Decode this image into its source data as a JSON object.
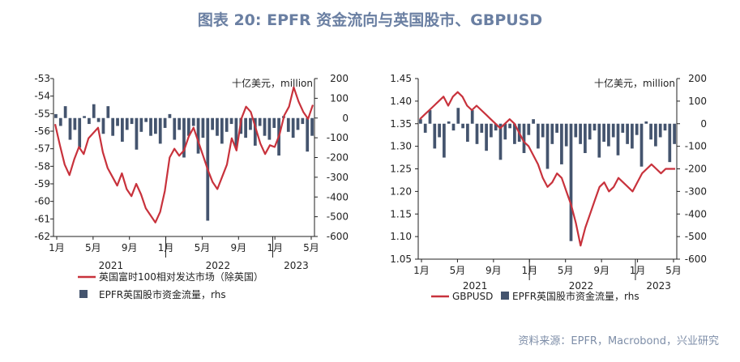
{
  "page_title": "图表 20: EPFR 资金流向与英国股市、GBPUSD",
  "source": "资料来源：EPFR，Macrobond，兴业研究",
  "colors": {
    "line": "#c8323c",
    "bar": "#44546e",
    "title": "#6a7fa2"
  },
  "chart_data": [
    {
      "type": "bar+line",
      "unit_label": "十亿美元，million",
      "y_left": {
        "ticks": [
          "-53",
          "-54",
          "-55",
          "-56",
          "-57",
          "-58",
          "-59",
          "-60",
          "-61",
          "-62"
        ],
        "range": [
          -62,
          -53
        ]
      },
      "y_right": {
        "ticks": [
          "200",
          "100",
          "0",
          "-100",
          "-200",
          "-300",
          "-400",
          "-500",
          "-600"
        ],
        "range": [
          -600,
          200
        ]
      },
      "x_ticks": [
        "1月",
        "5月",
        "9月",
        "1月",
        "5月",
        "9月",
        "1月",
        "5月"
      ],
      "years": [
        "2021",
        "2022",
        "2023"
      ],
      "legend": [
        {
          "kind": "line",
          "label": "英国富时100相对发达市场（除英国）"
        },
        {
          "kind": "bar",
          "label": "EPFR英国股市资金流量，rhs"
        }
      ],
      "series": [
        {
          "name": "英国富时100相对发达市场（除英国）",
          "axis": "left",
          "values": [
            -55.6,
            -56.8,
            -57.9,
            -58.5,
            -57.6,
            -56.9,
            -57.3,
            -56.4,
            -56.1,
            -55.8,
            -57.2,
            -58.1,
            -58.6,
            -59.1,
            -58.4,
            -59.3,
            -59.7,
            -59.0,
            -59.6,
            -60.4,
            -60.8,
            -61.2,
            -60.6,
            -59.4,
            -57.5,
            -57.0,
            -57.4,
            -57.1,
            -56.3,
            -55.8,
            -56.6,
            -57.4,
            -58.2,
            -58.9,
            -59.3,
            -58.6,
            -57.9,
            -56.4,
            -57.1,
            -55.3,
            -54.6,
            -54.9,
            -55.8,
            -56.7,
            -57.3,
            -56.8,
            -56.9,
            -56.2,
            -55.1,
            -54.6,
            -53.5,
            -54.3,
            -54.9,
            -55.3,
            -54.5
          ]
        },
        {
          "name": "EPFR英国股市资金流量",
          "axis": "right",
          "values": [
            20,
            -40,
            60,
            -110,
            -60,
            -150,
            10,
            -30,
            70,
            -20,
            -80,
            60,
            -90,
            -40,
            -120,
            -60,
            -30,
            -160,
            -70,
            -20,
            -90,
            -80,
            -130,
            -50,
            20,
            -110,
            -60,
            -200,
            -90,
            -40,
            -180,
            -100,
            -520,
            -60,
            -90,
            -130,
            -70,
            -30,
            -150,
            -80,
            -100,
            -60,
            -140,
            -40,
            -90,
            -110,
            -50,
            -190,
            10,
            -70,
            -100,
            -60,
            -30,
            -170,
            -90
          ]
        }
      ]
    },
    {
      "type": "bar+line",
      "unit_label": "十亿美元，million",
      "y_left": {
        "ticks": [
          "1.45",
          "1.40",
          "1.35",
          "1.30",
          "1.25",
          "1.20",
          "1.15",
          "1.10",
          "1.05"
        ],
        "range": [
          1.05,
          1.45
        ]
      },
      "y_right": {
        "ticks": [
          "200",
          "100",
          "0",
          "-100",
          "-200",
          "-300",
          "-400",
          "-500",
          "-600"
        ],
        "range": [
          -600,
          200
        ]
      },
      "x_ticks": [
        "1月",
        "5月",
        "9月",
        "1月",
        "5月",
        "9月",
        "1月",
        "5月"
      ],
      "years": [
        "2021",
        "2022",
        "2023"
      ],
      "legend": [
        {
          "kind": "line",
          "label": "GBPUSD"
        },
        {
          "kind": "bar",
          "label": "EPFR英国股市资金流量，rhs"
        }
      ],
      "series": [
        {
          "name": "GBPUSD",
          "axis": "left",
          "values": [
            1.36,
            1.37,
            1.38,
            1.39,
            1.4,
            1.41,
            1.39,
            1.41,
            1.42,
            1.41,
            1.39,
            1.38,
            1.39,
            1.38,
            1.37,
            1.36,
            1.35,
            1.34,
            1.35,
            1.36,
            1.35,
            1.33,
            1.31,
            1.3,
            1.28,
            1.26,
            1.23,
            1.21,
            1.22,
            1.24,
            1.23,
            1.2,
            1.17,
            1.13,
            1.08,
            1.12,
            1.15,
            1.18,
            1.21,
            1.22,
            1.2,
            1.21,
            1.23,
            1.22,
            1.21,
            1.2,
            1.22,
            1.24,
            1.25,
            1.26,
            1.25,
            1.24,
            1.25,
            1.25,
            1.25
          ]
        },
        {
          "name": "EPFR英国股市资金流量",
          "axis": "right",
          "values": [
            20,
            -40,
            60,
            -110,
            -60,
            -150,
            10,
            -30,
            70,
            -20,
            -80,
            60,
            -90,
            -40,
            -120,
            -60,
            -30,
            -160,
            -70,
            -20,
            -90,
            -80,
            -130,
            -50,
            20,
            -110,
            -60,
            -200,
            -90,
            -40,
            -180,
            -100,
            -520,
            -60,
            -90,
            -130,
            -70,
            -30,
            -150,
            -80,
            -100,
            -60,
            -140,
            -40,
            -90,
            -110,
            -50,
            -190,
            10,
            -70,
            -100,
            -60,
            -30,
            -170,
            -90
          ]
        }
      ]
    }
  ]
}
